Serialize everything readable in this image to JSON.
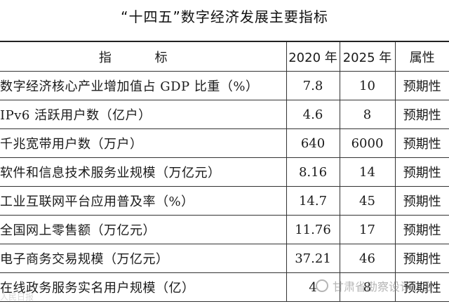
{
  "title": "“十四五”数字经济发展主要指标",
  "table": {
    "headers": [
      "指  标",
      "2020 年",
      "2025 年",
      "属性"
    ],
    "rows": [
      {
        "name": "数字经济核心产业增加值占 GDP 比重（%）",
        "y2020": "7.8",
        "y2025": "10",
        "attr": "预期性"
      },
      {
        "name": "IPv6 活跃用户数（亿户）",
        "y2020": "4.6",
        "y2025": "8",
        "attr": "预期性"
      },
      {
        "name": "千兆宽带用户数（万户）",
        "y2020": "640",
        "y2025": "6000",
        "attr": "预期性"
      },
      {
        "name": "软件和信息技术服务业规模（万亿元）",
        "y2020": "8.16",
        "y2025": "14",
        "attr": "预期性"
      },
      {
        "name": "工业互联网平台应用普及率（%）",
        "y2020": "14.7",
        "y2025": "45",
        "attr": "预期性"
      },
      {
        "name": "全国网上零售额（万亿元）",
        "y2020": "11.76",
        "y2025": "17",
        "attr": "预期性"
      },
      {
        "name": "电子商务交易规模（万亿元）",
        "y2020": "37.21",
        "y2025": "46",
        "attr": "预期性"
      },
      {
        "name": "在线政务服务实名用户规模（亿）",
        "y2020": "4",
        "y2025": "8",
        "attr": "预期性"
      }
    ]
  },
  "watermark": {
    "right": "甘肃省勘察设计协会",
    "left": "人民日报"
  }
}
